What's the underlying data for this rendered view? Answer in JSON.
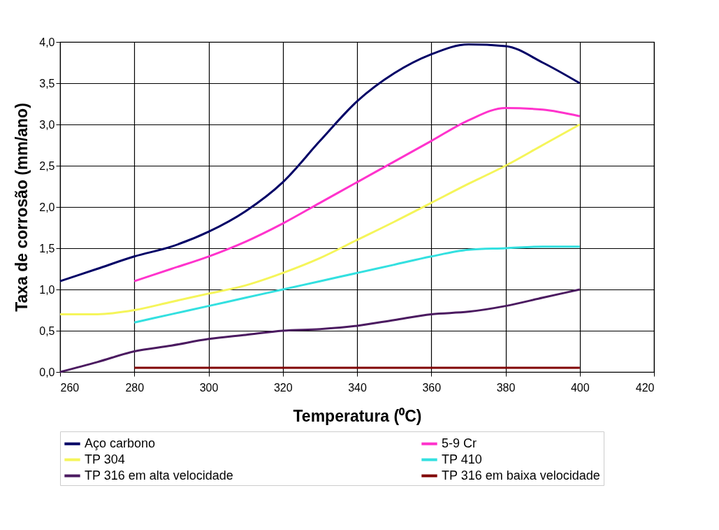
{
  "chart_data": {
    "type": "line",
    "xlabel": "Temperatura (⁰C)",
    "ylabel": "Taxa de corrosão (mm/ano)",
    "xlim": [
      260,
      420
    ],
    "xticks": [
      260,
      280,
      300,
      320,
      340,
      360,
      380,
      400,
      420
    ],
    "ylim": [
      0,
      4
    ],
    "yticks": [
      {
        "value": 0,
        "label": "0,0"
      },
      {
        "value": 0.5,
        "label": "0,5"
      },
      {
        "value": 1,
        "label": "1,0"
      },
      {
        "value": 1.5,
        "label": "1,5"
      },
      {
        "value": 2,
        "label": "2,0"
      },
      {
        "value": 2.5,
        "label": "2,5"
      },
      {
        "value": 3,
        "label": "3,0"
      },
      {
        "value": 3.5,
        "label": "3,5"
      },
      {
        "value": 4,
        "label": "4,0"
      }
    ],
    "grid": true,
    "legend": "bottom",
    "marker": "none",
    "series": [
      {
        "name": "Aço carbono",
        "color": "#000066",
        "x": [
          260,
          270,
          280,
          290,
          300,
          310,
          320,
          330,
          340,
          350,
          360,
          370,
          380,
          390,
          400
        ],
        "values": [
          1.1,
          1.25,
          1.4,
          1.52,
          1.7,
          1.95,
          2.3,
          2.8,
          3.28,
          3.62,
          3.85,
          3.97,
          3.95,
          3.75,
          3.5
        ]
      },
      {
        "name": "5-9 Cr",
        "color": "#ff33cc",
        "x": [
          280,
          290,
          300,
          310,
          320,
          330,
          340,
          350,
          360,
          370,
          380,
          390,
          400
        ],
        "values": [
          1.1,
          1.25,
          1.4,
          1.58,
          1.8,
          2.05,
          2.3,
          2.55,
          2.8,
          3.05,
          3.2,
          3.18,
          3.1
        ]
      },
      {
        "name": "TP 304",
        "color": "#f5f55a",
        "x": [
          260,
          270,
          280,
          290,
          300,
          310,
          320,
          330,
          340,
          350,
          360,
          370,
          380,
          390,
          400
        ],
        "values": [
          0.7,
          0.7,
          0.75,
          0.85,
          0.95,
          1.05,
          1.2,
          1.38,
          1.6,
          1.82,
          2.05,
          2.28,
          2.5,
          2.75,
          3.0
        ]
      },
      {
        "name": "TP 410",
        "color": "#33e0e0",
        "x": [
          280,
          290,
          300,
          310,
          320,
          330,
          340,
          350,
          360,
          370,
          380,
          390,
          400
        ],
        "values": [
          0.6,
          0.7,
          0.8,
          0.9,
          1.0,
          1.1,
          1.2,
          1.3,
          1.4,
          1.48,
          1.5,
          1.52,
          1.52
        ]
      },
      {
        "name": "TP 316 em alta velocidade",
        "color": "#4b1a60",
        "x": [
          260,
          270,
          280,
          290,
          300,
          310,
          320,
          330,
          340,
          350,
          360,
          370,
          380,
          390,
          400
        ],
        "values": [
          0.0,
          0.12,
          0.25,
          0.32,
          0.4,
          0.45,
          0.5,
          0.52,
          0.56,
          0.63,
          0.7,
          0.73,
          0.8,
          0.9,
          1.0
        ]
      },
      {
        "name": "TP 316 em baixa velocidade",
        "color": "#800000",
        "x": [
          280,
          400
        ],
        "values": [
          0.05,
          0.05
        ]
      }
    ]
  }
}
